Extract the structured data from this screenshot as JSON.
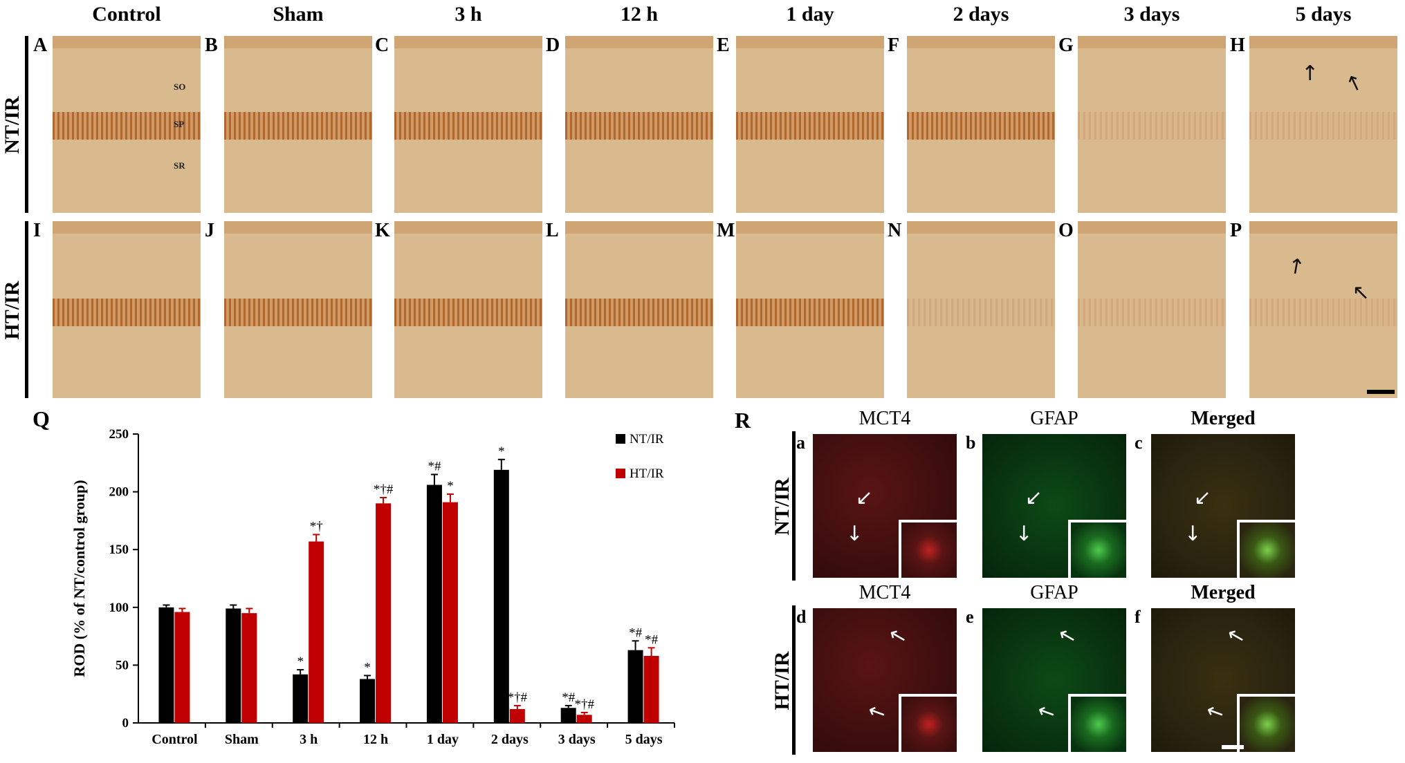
{
  "columns": [
    "Control",
    "Sham",
    "3 h",
    "12 h",
    "1 day",
    "2 days",
    "3 days",
    "5 days"
  ],
  "rows": [
    "NT/IR",
    "HT/IR"
  ],
  "panel_letters_top": [
    "A",
    "B",
    "C",
    "D",
    "E",
    "F",
    "G",
    "H"
  ],
  "panel_letters_bottom": [
    "I",
    "J",
    "K",
    "L",
    "M",
    "N",
    "O",
    "P"
  ],
  "layer_labels": [
    "SO",
    "SP",
    "SR"
  ],
  "panel_q_letter": "Q",
  "panel_r_letter": "R",
  "fluor_titles": [
    "MCT4",
    "GFAP",
    "Merged"
  ],
  "fluor_rows": [
    "NT/IR",
    "HT/IR"
  ],
  "fluor_letters": [
    "a",
    "b",
    "c",
    "d",
    "e",
    "f"
  ],
  "colors": {
    "nt": "#000000",
    "ht": "#c00000",
    "tissue": "#d9b98e"
  },
  "chart_data": {
    "type": "bar",
    "ylabel": "ROD (% of NT/control group)",
    "ylim": [
      0,
      250
    ],
    "yticks": [
      "0",
      "50",
      "100",
      "150",
      "200",
      "250"
    ],
    "categories": [
      "Control",
      "Sham",
      "3 h",
      "12 h",
      "1 day",
      "2 days",
      "3 days",
      "5 days"
    ],
    "legend_placement": "top-right",
    "series": [
      {
        "name": "NT/IR",
        "color": "#000000",
        "values": [
          100,
          99,
          42,
          38,
          206,
          219,
          13,
          63
        ],
        "errors": [
          2,
          3,
          4,
          3,
          9,
          9,
          2,
          8
        ],
        "annotations": [
          "",
          "",
          "*",
          "*",
          "*#",
          "*",
          "*#",
          "*#"
        ]
      },
      {
        "name": "HT/IR",
        "color": "#c00000",
        "values": [
          96,
          95,
          157,
          190,
          191,
          12,
          7,
          58
        ],
        "errors": [
          3,
          4,
          6,
          5,
          7,
          3,
          2,
          7
        ],
        "annotations": [
          "",
          "",
          "*†",
          "*†#",
          "*",
          "*†#",
          "*†#",
          "*#"
        ]
      }
    ]
  }
}
